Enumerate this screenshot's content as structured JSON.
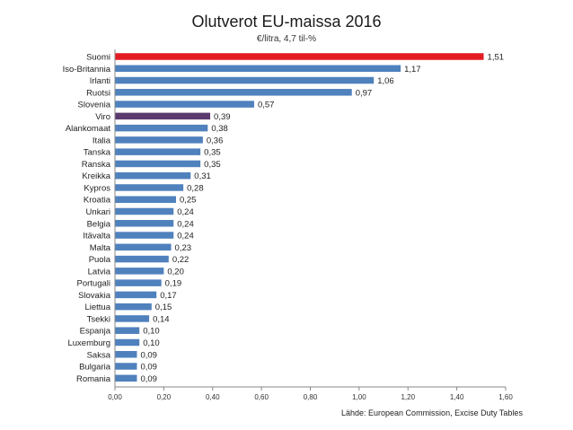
{
  "chart_data": {
    "type": "bar",
    "orientation": "horizontal",
    "title": "Olutverot EU-maissa 2016",
    "subtitle": "€/litra, 4,7 til-%",
    "source": "Lähde: European Commission, Excise Duty Tables",
    "categories": [
      "Suomi",
      "Iso-Britannia",
      "Irlanti",
      "Ruotsi",
      "Slovenia",
      "Viro",
      "Alankomaat",
      "Italia",
      "Tanska",
      "Ranska",
      "Kreikka",
      "Kypros",
      "Kroatia",
      "Unkari",
      "Belgia",
      "Itävalta",
      "Malta",
      "Puola",
      "Latvia",
      "Portugali",
      "Slovakia",
      "Liettua",
      "Tsekki",
      "Espanja",
      "Luxemburg",
      "Saksa",
      "Bulgaria",
      "Romania"
    ],
    "values": [
      1.51,
      1.17,
      1.06,
      0.97,
      0.57,
      0.39,
      0.38,
      0.36,
      0.35,
      0.35,
      0.31,
      0.28,
      0.25,
      0.24,
      0.24,
      0.24,
      0.23,
      0.22,
      0.2,
      0.19,
      0.17,
      0.15,
      0.14,
      0.1,
      0.1,
      0.09,
      0.09,
      0.09
    ],
    "value_labels": [
      "1,51",
      "1,17",
      "1,06",
      "0,97",
      "0,57",
      "0,39",
      "0,38",
      "0,36",
      "0,35",
      "0,35",
      "0,31",
      "0,28",
      "0,25",
      "0,24",
      "0,24",
      "0,24",
      "0,23",
      "0,22",
      "0,20",
      "0,19",
      "0,17",
      "0,15",
      "0,14",
      "0,10",
      "0,10",
      "0,09",
      "0,09",
      "0,09"
    ],
    "bar_colors": {
      "default": "#4f81bd",
      "Suomi": "#e31b23",
      "Viro": "#5b3a6e"
    },
    "xlim": [
      0,
      1.6
    ],
    "xticks": [
      "0,00",
      "0,20",
      "0,40",
      "0,60",
      "0,80",
      "1,00",
      "1,20",
      "1,40",
      "1,60"
    ],
    "grid": false,
    "legend": "none"
  }
}
